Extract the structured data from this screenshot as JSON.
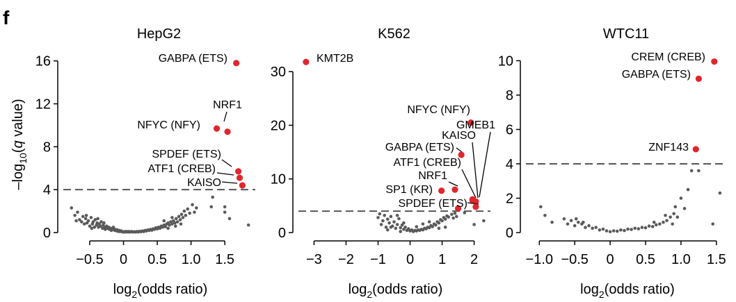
{
  "figure": {
    "panel_letter": "f",
    "ylabel": "-log10(q value)",
    "xlabel": "log2(odds ratio)",
    "point_color": "#e0262d",
    "background_point_color": "#5a5a5a",
    "threshold_color": "#555555"
  },
  "chart_data": [
    {
      "type": "scatter",
      "title": "HepG2",
      "xlim": [
        -0.85,
        1.9
      ],
      "ylim": [
        0,
        16.5
      ],
      "xticks": [
        -0.5,
        0,
        0.5,
        1.0,
        1.5
      ],
      "xtick_labels": [
        "−0.5",
        "0",
        "0.5",
        "1.0",
        "1.5"
      ],
      "yticks": [
        0,
        4,
        8,
        12,
        16
      ],
      "ytick_labels": [
        "0",
        "4",
        "8",
        "12",
        "16"
      ],
      "threshold": 4.0,
      "labeled_points": [
        {
          "label": "GABPA (ETS)",
          "x": 1.67,
          "y": 15.8
        },
        {
          "label": "NRF1",
          "x": 1.54,
          "y": 9.4
        },
        {
          "label": "NFYC (NFY)",
          "x": 1.38,
          "y": 9.7
        },
        {
          "label": "SPDEF (ETS)",
          "x": 1.7,
          "y": 5.7
        },
        {
          "label": "ATF1 (CREB)",
          "x": 1.72,
          "y": 5.1
        },
        {
          "label": "KAISO",
          "x": 1.76,
          "y": 4.4
        }
      ],
      "background_points": [
        [
          -0.77,
          2.3
        ],
        [
          -0.72,
          1.6
        ],
        [
          -0.68,
          1.9
        ],
        [
          -0.65,
          1.2
        ],
        [
          -0.62,
          1.0
        ],
        [
          -0.6,
          1.5
        ],
        [
          -0.58,
          0.8
        ],
        [
          -0.56,
          1.3
        ],
        [
          -0.54,
          0.9
        ],
        [
          -0.52,
          1.1
        ],
        [
          -0.5,
          0.6
        ],
        [
          -0.48,
          1.4
        ],
        [
          -0.46,
          0.8
        ],
        [
          -0.45,
          1.0
        ],
        [
          -0.43,
          0.5
        ],
        [
          -0.42,
          1.2
        ],
        [
          -0.4,
          0.7
        ],
        [
          -0.39,
          0.9
        ],
        [
          -0.37,
          0.5
        ],
        [
          -0.36,
          0.8
        ],
        [
          -0.34,
          0.6
        ],
        [
          -0.33,
          1.0
        ],
        [
          -0.31,
          0.4
        ],
        [
          -0.3,
          0.7
        ],
        [
          -0.28,
          0.5
        ],
        [
          -0.27,
          0.3
        ],
        [
          -0.25,
          0.6
        ],
        [
          -0.24,
          0.4
        ],
        [
          -0.22,
          0.5
        ],
        [
          -0.21,
          0.3
        ],
        [
          -0.19,
          0.4
        ],
        [
          -0.18,
          0.2
        ],
        [
          -0.16,
          0.3
        ],
        [
          -0.15,
          0.5
        ],
        [
          -0.13,
          0.2
        ],
        [
          -0.12,
          0.3
        ],
        [
          -0.1,
          0.15
        ],
        [
          -0.09,
          0.25
        ],
        [
          -0.07,
          0.1
        ],
        [
          -0.06,
          0.2
        ],
        [
          -0.04,
          0.1
        ],
        [
          -0.03,
          0.15
        ],
        [
          -0.01,
          0.05
        ],
        [
          0.01,
          0.05
        ],
        [
          0.02,
          0.1
        ],
        [
          0.04,
          0.05
        ],
        [
          0.05,
          0.1
        ],
        [
          0.07,
          0.05
        ],
        [
          0.08,
          0.1
        ],
        [
          0.1,
          0.05
        ],
        [
          0.12,
          0.1
        ],
        [
          0.14,
          0.05
        ],
        [
          0.16,
          0.08
        ],
        [
          0.18,
          0.05
        ],
        [
          0.2,
          0.1
        ],
        [
          0.22,
          0.06
        ],
        [
          0.24,
          0.12
        ],
        [
          0.26,
          0.08
        ],
        [
          0.28,
          0.15
        ],
        [
          0.3,
          0.1
        ],
        [
          0.32,
          0.2
        ],
        [
          0.34,
          0.15
        ],
        [
          0.36,
          0.25
        ],
        [
          0.38,
          0.2
        ],
        [
          0.4,
          0.3
        ],
        [
          0.42,
          0.22
        ],
        [
          0.44,
          0.35
        ],
        [
          0.46,
          0.3
        ],
        [
          0.48,
          0.45
        ],
        [
          0.5,
          0.35
        ],
        [
          0.52,
          0.5
        ],
        [
          0.54,
          0.4
        ],
        [
          0.56,
          0.6
        ],
        [
          0.58,
          0.5
        ],
        [
          0.6,
          0.7
        ],
        [
          0.62,
          0.55
        ],
        [
          0.64,
          0.8
        ],
        [
          0.66,
          0.9
        ],
        [
          0.68,
          0.7
        ],
        [
          0.7,
          1.0
        ],
        [
          0.72,
          0.8
        ],
        [
          0.74,
          1.1
        ],
        [
          0.76,
          0.9
        ],
        [
          0.78,
          1.3
        ],
        [
          0.8,
          1.0
        ],
        [
          0.82,
          1.5
        ],
        [
          0.84,
          1.2
        ],
        [
          0.86,
          1.7
        ],
        [
          0.88,
          1.4
        ],
        [
          0.9,
          2.0
        ],
        [
          0.92,
          1.6
        ],
        [
          0.95,
          2.2
        ],
        [
          0.98,
          1.8
        ],
        [
          1.02,
          2.6
        ],
        [
          1.05,
          1.9
        ],
        [
          1.08,
          2.3
        ],
        [
          1.3,
          2.4
        ],
        [
          1.32,
          3.3
        ],
        [
          1.5,
          2.4
        ],
        [
          1.5,
          1.9
        ],
        [
          1.57,
          1.3
        ],
        [
          1.85,
          0.7
        ],
        [
          -0.7,
          1.1
        ],
        [
          -0.55,
          1.6
        ],
        [
          -0.47,
          0.4
        ],
        [
          -0.38,
          1.3
        ],
        [
          -0.29,
          0.9
        ],
        [
          0.6,
          1.1
        ],
        [
          0.72,
          1.4
        ],
        [
          0.66,
          0.4
        ],
        [
          0.77,
          0.6
        ],
        [
          0.85,
          0.8
        ]
      ]
    },
    {
      "type": "scatter",
      "title": "K562",
      "xlim": [
        -3.4,
        2.4
      ],
      "ylim": [
        0,
        33
      ],
      "xticks": [
        -3,
        -2,
        -1,
        0,
        1,
        2
      ],
      "xtick_labels": [
        "−3",
        "−2",
        "−1",
        "0",
        "1",
        "2"
      ],
      "yticks": [
        0,
        10,
        20,
        30
      ],
      "ytick_labels": [
        "0",
        "10",
        "20",
        "30"
      ],
      "threshold": 4.0,
      "labeled_points": [
        {
          "label": "KMT2B",
          "x": -3.25,
          "y": 31.8
        },
        {
          "label": "NFYC (NFY)",
          "x": 1.9,
          "y": 20.5
        },
        {
          "label": "GMEB1",
          "x": 2.05,
          "y": 5.8
        },
        {
          "label": "KAISO",
          "x": 1.95,
          "y": 6.0
        },
        {
          "label": "GABPA (ETS)",
          "x": 1.6,
          "y": 14.5
        },
        {
          "label": "ATF1 (CREB)",
          "x": 1.95,
          "y": 6.2
        },
        {
          "label": "NRF1",
          "x": 1.4,
          "y": 8.0
        },
        {
          "label": "SP1 (KR)",
          "x": 0.98,
          "y": 7.8
        },
        {
          "label": "SPDEF (ETS)",
          "x": 1.5,
          "y": 4.5
        },
        {
          "label": "",
          "x": 2.05,
          "y": 4.8
        }
      ],
      "background_points": [
        [
          -1.0,
          2.8
        ],
        [
          -0.9,
          1.5
        ],
        [
          -0.85,
          2.2
        ],
        [
          -0.8,
          3.2
        ],
        [
          -0.75,
          1.0
        ],
        [
          -0.7,
          2.5
        ],
        [
          -0.65,
          1.8
        ],
        [
          -0.6,
          3.0
        ],
        [
          -0.55,
          1.2
        ],
        [
          -0.5,
          2.0
        ],
        [
          -0.45,
          0.8
        ],
        [
          -0.4,
          1.5
        ],
        [
          -0.35,
          2.6
        ],
        [
          -0.3,
          0.9
        ],
        [
          -0.25,
          1.4
        ],
        [
          -0.2,
          0.6
        ],
        [
          -0.15,
          1.0
        ],
        [
          -0.1,
          0.4
        ],
        [
          -0.05,
          0.7
        ],
        [
          0.0,
          0.3
        ],
        [
          0.05,
          0.5
        ],
        [
          0.1,
          0.2
        ],
        [
          0.15,
          0.4
        ],
        [
          0.2,
          0.3
        ],
        [
          0.25,
          0.5
        ],
        [
          0.3,
          0.4
        ],
        [
          0.35,
          0.6
        ],
        [
          0.4,
          0.5
        ],
        [
          0.45,
          0.8
        ],
        [
          0.5,
          0.7
        ],
        [
          0.55,
          1.0
        ],
        [
          0.6,
          0.9
        ],
        [
          0.65,
          1.3
        ],
        [
          0.7,
          1.1
        ],
        [
          0.75,
          1.6
        ],
        [
          0.8,
          1.4
        ],
        [
          0.85,
          2.0
        ],
        [
          0.9,
          1.8
        ],
        [
          0.95,
          2.4
        ],
        [
          1.0,
          2.2
        ],
        [
          1.05,
          2.8
        ],
        [
          1.1,
          2.5
        ],
        [
          1.15,
          3.1
        ],
        [
          1.2,
          2.9
        ],
        [
          1.3,
          3.4
        ],
        [
          1.35,
          2.7
        ],
        [
          1.4,
          3.6
        ],
        [
          1.45,
          3.0
        ],
        [
          2.3,
          2.2
        ],
        [
          2.0,
          1.5
        ],
        [
          1.7,
          3.7
        ],
        [
          -0.95,
          3.5
        ],
        [
          -0.6,
          1.0
        ],
        [
          -0.4,
          3.2
        ],
        [
          -0.2,
          1.8
        ],
        [
          0.2,
          1.1
        ],
        [
          0.6,
          2.0
        ],
        [
          0.9,
          0.8
        ],
        [
          -0.7,
          0.5
        ],
        [
          -0.3,
          0.2
        ],
        [
          0.4,
          1.6
        ],
        [
          1.1,
          1.0
        ]
      ]
    },
    {
      "type": "scatter",
      "title": "WTC11",
      "xlim": [
        -1.15,
        1.6
      ],
      "ylim": [
        0,
        10.3
      ],
      "xticks": [
        -1.0,
        -0.5,
        0,
        0.5,
        1.0,
        1.5
      ],
      "xtick_labels": [
        "−1.0",
        "−0.5",
        "0",
        "0.5",
        "1.0",
        "1.5"
      ],
      "yticks": [
        0,
        2,
        4,
        6,
        8,
        10
      ],
      "ytick_labels": [
        "0",
        "2",
        "4",
        "6",
        "8",
        "10"
      ],
      "threshold": 4.0,
      "labeled_points": [
        {
          "label": "CREM (CREB)",
          "x": 1.47,
          "y": 9.95
        },
        {
          "label": "GABPA (ETS)",
          "x": 1.25,
          "y": 8.95
        },
        {
          "label": "ZNF143",
          "x": 1.21,
          "y": 4.85
        }
      ],
      "background_points": [
        [
          -0.98,
          1.5
        ],
        [
          -0.92,
          1.0
        ],
        [
          -0.82,
          0.6
        ],
        [
          -0.65,
          0.8
        ],
        [
          -0.6,
          0.5
        ],
        [
          -0.55,
          0.7
        ],
        [
          -0.5,
          0.4
        ],
        [
          -0.45,
          0.6
        ],
        [
          -0.4,
          0.5
        ],
        [
          -0.35,
          0.3
        ],
        [
          -0.3,
          0.4
        ],
        [
          -0.25,
          0.25
        ],
        [
          -0.2,
          0.3
        ],
        [
          -0.15,
          0.15
        ],
        [
          -0.1,
          0.2
        ],
        [
          -0.05,
          0.1
        ],
        [
          0.0,
          0.05
        ],
        [
          0.05,
          0.1
        ],
        [
          0.1,
          0.08
        ],
        [
          0.15,
          0.15
        ],
        [
          0.2,
          0.12
        ],
        [
          0.25,
          0.2
        ],
        [
          0.3,
          0.18
        ],
        [
          0.35,
          0.25
        ],
        [
          0.4,
          0.22
        ],
        [
          0.45,
          0.3
        ],
        [
          0.5,
          0.28
        ],
        [
          0.55,
          0.38
        ],
        [
          0.6,
          0.35
        ],
        [
          0.65,
          0.45
        ],
        [
          0.7,
          0.5
        ],
        [
          0.75,
          0.6
        ],
        [
          0.8,
          0.7
        ],
        [
          0.85,
          0.9
        ],
        [
          0.9,
          1.1
        ],
        [
          0.92,
          1.5
        ],
        [
          0.95,
          0.9
        ],
        [
          1.0,
          2.0
        ],
        [
          1.05,
          1.4
        ],
        [
          1.1,
          2.5
        ],
        [
          1.15,
          3.6
        ],
        [
          1.25,
          3.6
        ],
        [
          1.45,
          0.5
        ],
        [
          1.55,
          2.3
        ],
        [
          -0.48,
          0.8
        ],
        [
          -0.38,
          0.6
        ],
        [
          0.62,
          0.6
        ],
        [
          0.78,
          1.0
        ],
        [
          0.88,
          0.5
        ]
      ]
    }
  ]
}
